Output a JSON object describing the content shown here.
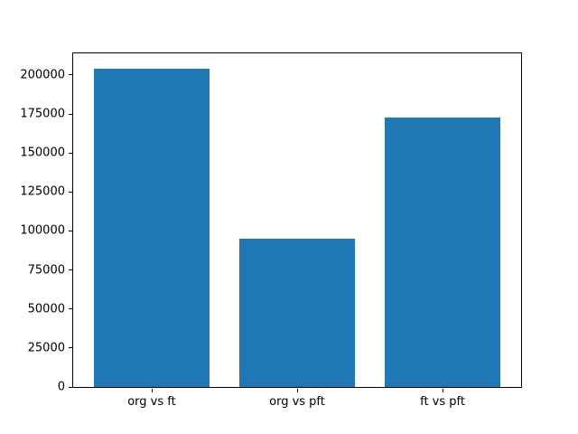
{
  "figure": {
    "background": "#ffffff",
    "spine_color": "#000000",
    "tick_color": "#000000"
  },
  "chart_data": {
    "type": "bar",
    "title": "",
    "xlabel": "",
    "ylabel": "",
    "categories": [
      "org vs ft",
      "org vs pft",
      "ft vs pft"
    ],
    "values": [
      204000,
      95000,
      173000
    ],
    "bar_color": "#1f77b4",
    "bar_width": 0.8,
    "xlim": [
      -0.54,
      2.54
    ],
    "ylim": [
      0,
      214200
    ],
    "yticks": [
      0,
      25000,
      50000,
      75000,
      100000,
      125000,
      150000,
      175000,
      200000
    ],
    "grid": false,
    "legend": null
  }
}
